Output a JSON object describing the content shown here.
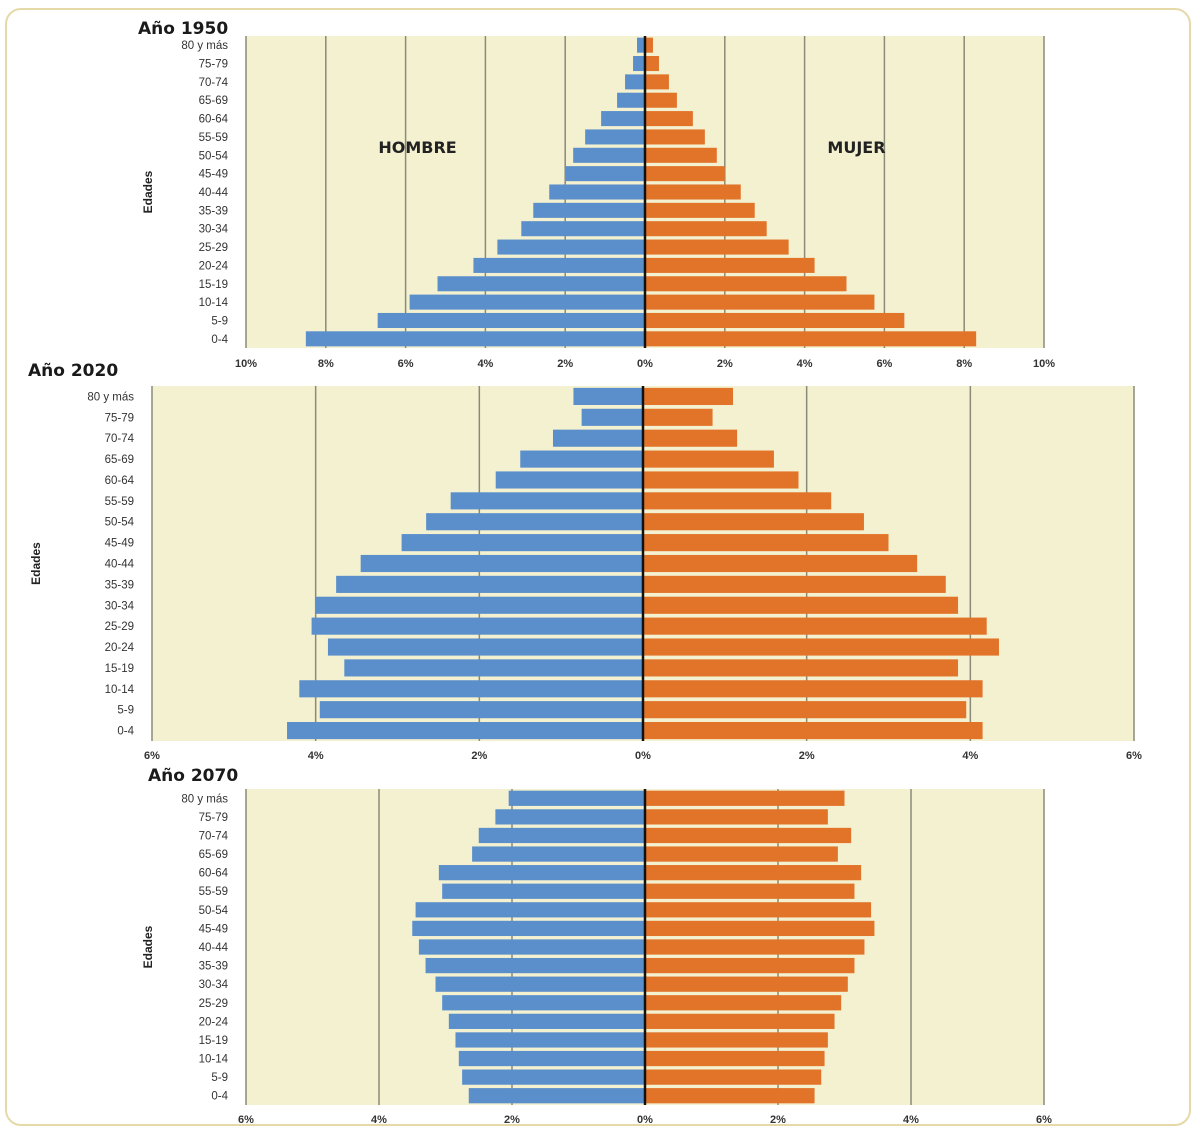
{
  "colors": {
    "hombre": "#5b8fcc",
    "mujer": "#e2742a",
    "background": "#f4f1d0",
    "grid": "#8a8a7a",
    "center_line": "#111111"
  },
  "labels": {
    "hombre": "HOMBRE",
    "mujer": "MUJER",
    "ylabel": "Edades"
  },
  "chart_data": [
    {
      "type": "bar",
      "orientation": "horizontal",
      "title": "Año 1950",
      "ylabel": "Edades",
      "categories": [
        "80 y más",
        "75-79",
        "70-74",
        "65-69",
        "60-64",
        "55-59",
        "50-54",
        "45-49",
        "40-44",
        "35-39",
        "30-34",
        "25-29",
        "20-24",
        "15-19",
        "10-14",
        "5-9",
        "0-4"
      ],
      "series": [
        {
          "name": "HOMBRE",
          "values": [
            0.2,
            0.3,
            0.5,
            0.7,
            1.1,
            1.5,
            1.8,
            2.0,
            2.4,
            2.8,
            3.1,
            3.7,
            4.3,
            5.2,
            5.9,
            6.7,
            8.5
          ]
        },
        {
          "name": "MUJER",
          "values": [
            0.2,
            0.35,
            0.6,
            0.8,
            1.2,
            1.5,
            1.8,
            2.0,
            2.4,
            2.75,
            3.05,
            3.6,
            4.25,
            5.05,
            5.75,
            6.5,
            8.3
          ]
        }
      ],
      "xlim": [
        -10,
        10
      ],
      "xticks": [
        "10%",
        "8%",
        "6%",
        "4%",
        "2%",
        "0%",
        "2%",
        "4%",
        "6%",
        "8%",
        "10%"
      ]
    },
    {
      "type": "bar",
      "orientation": "horizontal",
      "title": "Año 2020",
      "ylabel": "Edades",
      "categories": [
        "80 y más",
        "75-79",
        "70-74",
        "65-69",
        "60-64",
        "55-59",
        "50-54",
        "45-49",
        "40-44",
        "35-39",
        "30-34",
        "25-29",
        "20-24",
        "15-19",
        "10-14",
        "5-9",
        "0-4"
      ],
      "series": [
        {
          "name": "HOMBRE",
          "values": [
            0.85,
            0.75,
            1.1,
            1.5,
            1.8,
            2.35,
            2.65,
            2.95,
            3.45,
            3.75,
            4.0,
            4.05,
            3.85,
            3.65,
            4.2,
            3.95,
            4.35
          ]
        },
        {
          "name": "MUJER",
          "values": [
            1.1,
            0.85,
            1.15,
            1.6,
            1.9,
            2.3,
            2.7,
            3.0,
            3.35,
            3.7,
            3.85,
            4.2,
            4.35,
            3.85,
            4.15,
            3.95,
            4.15
          ]
        }
      ],
      "xlim": [
        -6,
        6
      ],
      "xticks": [
        "6%",
        "4%",
        "2%",
        "0%",
        "2%",
        "4%",
        "6%"
      ]
    },
    {
      "type": "bar",
      "orientation": "horizontal",
      "title": "Año 2070",
      "ylabel": "Edades",
      "categories": [
        "80 y más",
        "75-79",
        "70-74",
        "65-69",
        "60-64",
        "55-59",
        "50-54",
        "45-49",
        "40-44",
        "35-39",
        "30-34",
        "25-29",
        "20-24",
        "15-19",
        "10-14",
        "5-9",
        "0-4"
      ],
      "series": [
        {
          "name": "HOMBRE",
          "values": [
            2.05,
            2.25,
            2.5,
            2.6,
            3.1,
            3.05,
            3.45,
            3.5,
            3.4,
            3.3,
            3.15,
            3.05,
            2.95,
            2.85,
            2.8,
            2.75,
            2.65
          ]
        },
        {
          "name": "MUJER",
          "values": [
            3.0,
            2.75,
            3.1,
            2.9,
            3.25,
            3.15,
            3.4,
            3.45,
            3.3,
            3.15,
            3.05,
            2.95,
            2.85,
            2.75,
            2.7,
            2.65,
            2.55
          ]
        }
      ],
      "xlim": [
        -6,
        6
      ],
      "xticks": [
        "6%",
        "4%",
        "2%",
        "0%",
        "2%",
        "4%",
        "6%"
      ]
    }
  ]
}
